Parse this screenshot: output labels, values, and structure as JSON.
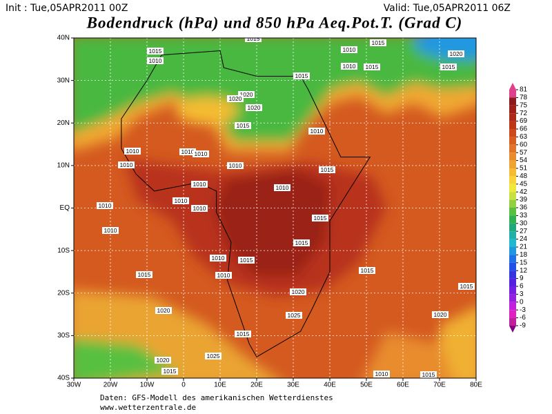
{
  "header": {
    "init": "Init : Tue,05APR2011 00Z",
    "valid": "Valid: Tue,05APR2011 06Z",
    "title": "Bodendruck (hPa) und 850 hPa Aeq.Pot.T. (Grad C)"
  },
  "map": {
    "lon_labels": [
      "30W",
      "20W",
      "10W",
      "0",
      "10E",
      "20E",
      "30E",
      "40E",
      "50E",
      "60E",
      "70E",
      "80E"
    ],
    "lat_labels": [
      "40N",
      "30N",
      "20N",
      "10N",
      "EQ",
      "10S",
      "20S",
      "30S",
      "40S"
    ],
    "isobar_labels": [
      "1015",
      "1010",
      "1015",
      "1010",
      "1015",
      "1010",
      "1015",
      "1020",
      "1015",
      "1015",
      "1020",
      "1020",
      "1020",
      "1015",
      "1010",
      "1010",
      "1010",
      "1010",
      "1010",
      "1010",
      "1015",
      "1010",
      "1010",
      "1010",
      "1010",
      "1010",
      "1015",
      "1010",
      "1015",
      "1010",
      "1015",
      "1010",
      "1015",
      "1015",
      "1015",
      "1020",
      "1020",
      "1025",
      "1020",
      "1015",
      "1025",
      "1020",
      "1015",
      "1010",
      "1015"
    ]
  },
  "colorbar": {
    "levels": [
      81,
      78,
      75,
      72,
      69,
      66,
      63,
      60,
      57,
      54,
      51,
      48,
      45,
      42,
      39,
      36,
      33,
      30,
      27,
      24,
      21,
      18,
      15,
      12,
      9,
      6,
      3,
      0,
      -3,
      -6,
      -9
    ],
    "colors": [
      "#e0408a",
      "#8b1a1a",
      "#9e2018",
      "#ae2a18",
      "#be3818",
      "#cc4a1e",
      "#d85e20",
      "#e07428",
      "#e88c2e",
      "#eea430",
      "#f4bc32",
      "#f8d43a",
      "#eee838",
      "#c8e040",
      "#92d040",
      "#58c040",
      "#30b050",
      "#20a878",
      "#20b0a8",
      "#20b8d0",
      "#2098e0",
      "#2070e8",
      "#2050e8",
      "#3434e0",
      "#5422e0",
      "#7420e0",
      "#9420e0",
      "#c420e0",
      "#e020c0",
      "#c0209c",
      "#800080"
    ]
  },
  "footer": {
    "source": "Daten: GFS-Modell des amerikanischen Wetterdienstes",
    "site": "www.wetterzentrale.de"
  }
}
